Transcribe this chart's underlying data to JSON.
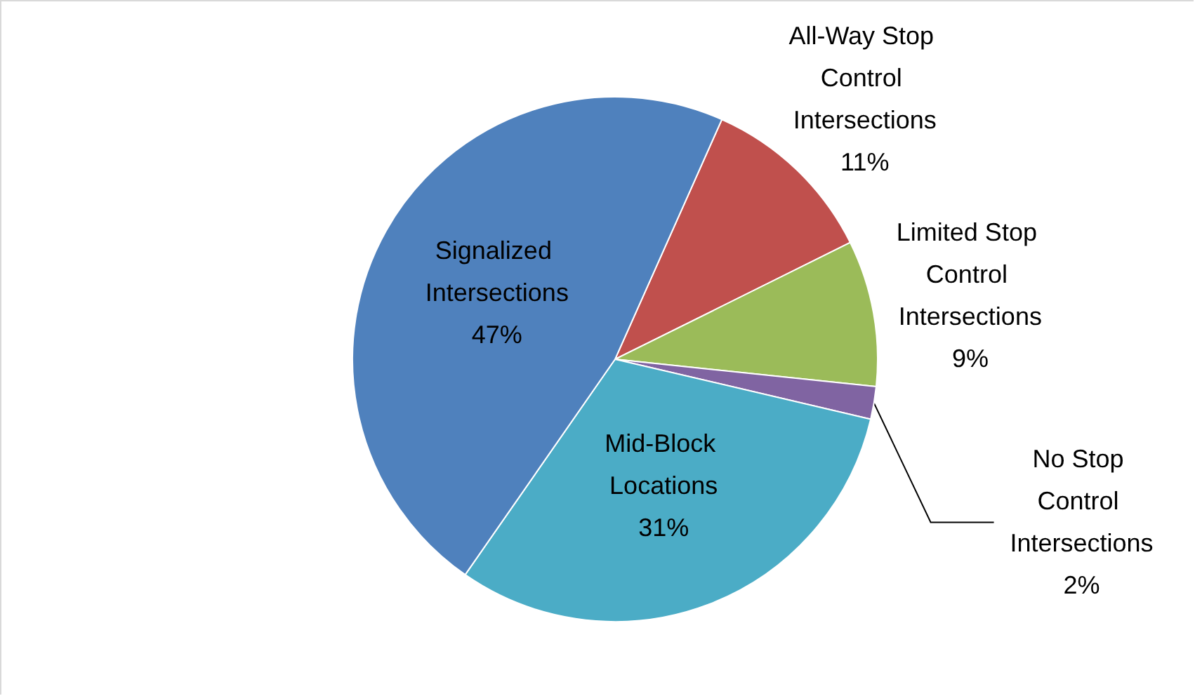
{
  "chart_data": {
    "type": "pie",
    "categories": [
      "All-Way Stop Control Intersections",
      "Limited Stop Control Intersections",
      "No Stop Control Intersections",
      "Mid-Block Locations",
      "Signalized Intersections"
    ],
    "values": [
      11,
      9,
      2,
      31,
      47
    ],
    "colors": [
      "#c0504d",
      "#9bbb59",
      "#8064a2",
      "#4bacc6",
      "#4f81bd"
    ],
    "value_labels": [
      "11%",
      "9%",
      "2%",
      "31%",
      "47%"
    ],
    "legend": false
  }
}
